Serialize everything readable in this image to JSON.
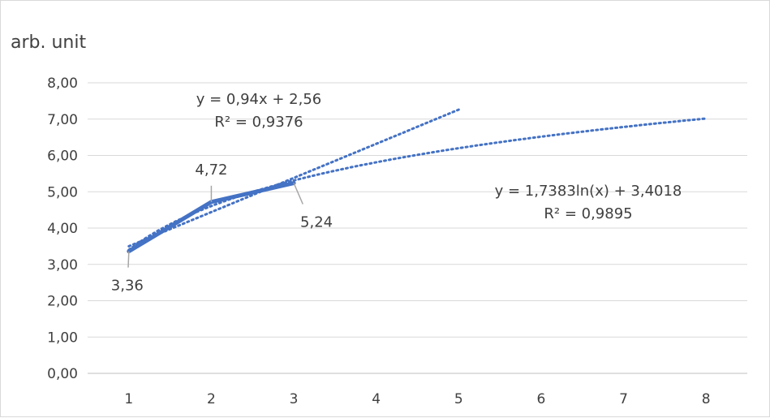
{
  "chart_data": {
    "type": "line",
    "title": "",
    "ylabel": "arb. unit",
    "xlabel": "",
    "x": [
      1,
      2,
      3,
      4,
      5,
      6,
      7,
      8
    ],
    "x_tick_labels": [
      "1",
      "2",
      "3",
      "4",
      "5",
      "6",
      "7",
      "8"
    ],
    "ylim": [
      0,
      8
    ],
    "y_tick_values": [
      0,
      1,
      2,
      3,
      4,
      5,
      6,
      7,
      8
    ],
    "y_tick_labels": [
      "0,00",
      "1,00",
      "2,00",
      "3,00",
      "4,00",
      "5,00",
      "6,00",
      "7,00",
      "8,00"
    ],
    "grid": "horizontal",
    "series": [
      {
        "x": [
          1,
          2,
          3
        ],
        "values": [
          3.36,
          4.72,
          5.24
        ],
        "labels": [
          "3,36",
          "4,72",
          "5,24"
        ],
        "color": "#4472c4"
      }
    ],
    "trendlines": [
      {
        "kind": "linear",
        "slope": 0.94,
        "intercept": 2.56,
        "x_range": [
          1,
          5
        ],
        "equation": "y = 0,94x + 2,56",
        "r2": "R² = 0,9376",
        "color": "#4472c4"
      },
      {
        "kind": "log",
        "a": 1.7383,
        "b": 3.4018,
        "x_range": [
          1,
          8
        ],
        "equation": "y = 1,7383ln(x) + 3,4018",
        "r2": "R² = 0,9895",
        "color": "#4472c4"
      }
    ]
  }
}
